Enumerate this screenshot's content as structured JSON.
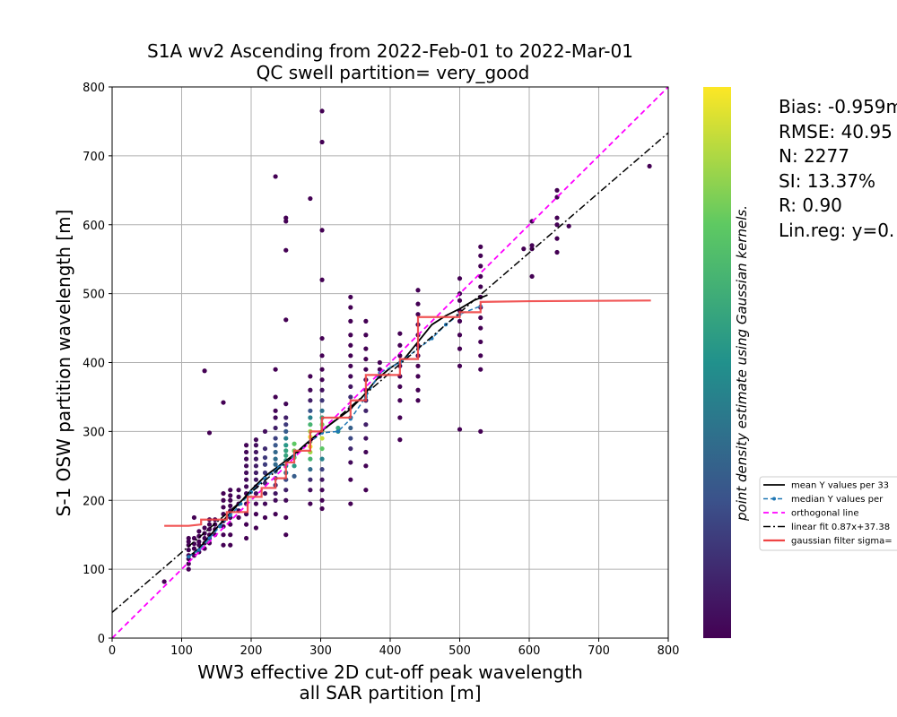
{
  "chart_data": {
    "type": "scatter",
    "title": "S1A wv2 Ascending from 2022-Feb-01 to 2022-Mar-01",
    "subtitle": "QC swell partition= very_good",
    "xlabel_line1": "WW3 effective 2D cut-off peak wavelength",
    "xlabel_line2": "all SAR partition [m]",
    "ylabel": "S-1 OSW partition wavelength [m]",
    "colorbar_label": "point density estimate using Gaussian kernels.",
    "xlim": [
      0,
      800
    ],
    "ylim": [
      0,
      800
    ],
    "xticks": [
      "0",
      "100",
      "200",
      "300",
      "400",
      "500",
      "600",
      "700",
      "800"
    ],
    "yticks": [
      "0",
      "100",
      "200",
      "300",
      "400",
      "500",
      "600",
      "700",
      "800"
    ],
    "grid": true,
    "colormap": "viridis",
    "colors": {
      "mean": "#000000",
      "median": "#1f77b4",
      "orthogonal": "#ff00ff",
      "linear_fit": "#000000",
      "gaussian": "#ef4444"
    },
    "stats": [
      "Bias: -0.959m",
      "RMSE: 40.95",
      "N: 2277",
      "SI: 13.37%",
      "R: 0.90",
      "Lin.reg: y=0."
    ],
    "legend": {
      "position": "right",
      "entries": [
        "mean Y values per 33",
        "median Y values per",
        "orthogonal line",
        "linear fit 0.87x+37.38",
        "gaussian filter sigma="
      ]
    },
    "scatter_columns": [
      {
        "x": 75,
        "ys": [
          82
        ]
      },
      {
        "x": 110,
        "ys": [
          100,
          108,
          115,
          120,
          128,
          135,
          140,
          145
        ]
      },
      {
        "x": 118,
        "ys": [
          120,
          130,
          137,
          145,
          175
        ]
      },
      {
        "x": 125,
        "ys": [
          125,
          135,
          140,
          148,
          155
        ]
      },
      {
        "x": 133,
        "ys": [
          130,
          138,
          145,
          152,
          160,
          388
        ]
      },
      {
        "x": 140,
        "ys": [
          138,
          145,
          150,
          158,
          165,
          172,
          298
        ]
      },
      {
        "x": 148,
        "ys": [
          150,
          158,
          165,
          172
        ]
      },
      {
        "x": 160,
        "ys": [
          135,
          150,
          162,
          170,
          180,
          190,
          200,
          210,
          342
        ]
      },
      {
        "x": 170,
        "ys": [
          135,
          150,
          165,
          175,
          185,
          192,
          200,
          207,
          215
        ]
      },
      {
        "x": 182,
        "ys": [
          175,
          185,
          195,
          205,
          215
        ]
      },
      {
        "x": 193,
        "ys": [
          145,
          165,
          180,
          195,
          210,
          220,
          230,
          240,
          250,
          260,
          270,
          280
        ]
      },
      {
        "x": 207,
        "ys": [
          160,
          180,
          195,
          210,
          220,
          230,
          240,
          250,
          260,
          270,
          280,
          288
        ]
      },
      {
        "x": 220,
        "ys": [
          175,
          195,
          210,
          225,
          240,
          252,
          262,
          275,
          300
        ]
      },
      {
        "x": 235,
        "ys": [
          180,
          200,
          210,
          222,
          232,
          242,
          252,
          260,
          270,
          280,
          290,
          305,
          320,
          330,
          350,
          390,
          670
        ]
      },
      {
        "x": 250,
        "ys": [
          150,
          175,
          200,
          215,
          230,
          240,
          250,
          258,
          265,
          272,
          280,
          290,
          300,
          310,
          320,
          340,
          462,
          563,
          605,
          610
        ]
      },
      {
        "x": 262,
        "ys": [
          235,
          250,
          262,
          272,
          282
        ]
      },
      {
        "x": 285,
        "ys": [
          195,
          215,
          230,
          245,
          260,
          270,
          278,
          285,
          292,
          300,
          310,
          320,
          330,
          345,
          360,
          380,
          638
        ]
      },
      {
        "x": 302,
        "ys": [
          188,
          200,
          215,
          230,
          245,
          260,
          275,
          290,
          300,
          310,
          320,
          330,
          345,
          360,
          375,
          390,
          410,
          435,
          520,
          592,
          720,
          765
        ]
      },
      {
        "x": 325,
        "ys": [
          300,
          305
        ]
      },
      {
        "x": 343,
        "ys": [
          195,
          230,
          255,
          275,
          290,
          305,
          320,
          335,
          350,
          365,
          380,
          395,
          410,
          425,
          440,
          460,
          480,
          495
        ]
      },
      {
        "x": 365,
        "ys": [
          215,
          250,
          270,
          290,
          310,
          330,
          345,
          360,
          375,
          390,
          405,
          420,
          440,
          460
        ]
      },
      {
        "x": 385,
        "ys": [
          380,
          390,
          400
        ]
      },
      {
        "x": 414,
        "ys": [
          288,
          320,
          345,
          365,
          380,
          395,
          410,
          425,
          442
        ]
      },
      {
        "x": 440,
        "ys": [
          345,
          360,
          380,
          395,
          410,
          425,
          440,
          455,
          470,
          485,
          505
        ]
      },
      {
        "x": 500,
        "ys": [
          303,
          395,
          420,
          440,
          460,
          475,
          490,
          500,
          522
        ]
      },
      {
        "x": 530,
        "ys": [
          300,
          390,
          410,
          430,
          450,
          465,
          480,
          495,
          510,
          525,
          540,
          555,
          568
        ]
      },
      {
        "x": 592,
        "ys": [
          565
        ]
      },
      {
        "x": 604,
        "ys": [
          525,
          565,
          570,
          605
        ]
      },
      {
        "x": 640,
        "ys": [
          560,
          580,
          600,
          610,
          640,
          650
        ]
      },
      {
        "x": 657,
        "ys": [
          598
        ]
      },
      {
        "x": 773,
        "ys": [
          685
        ]
      }
    ],
    "series": [
      {
        "name": "mean Y values per 33",
        "x": [
          110,
          125,
          140,
          155,
          170,
          185,
          200,
          220,
          240,
          260,
          280,
          300,
          320,
          340,
          360,
          380,
          400,
          420,
          440,
          460,
          480,
          500,
          520,
          540
        ],
        "y": [
          118,
          130,
          148,
          165,
          182,
          198,
          215,
          235,
          250,
          265,
          283,
          300,
          315,
          330,
          350,
          375,
          392,
          405,
          430,
          455,
          468,
          478,
          490,
          498
        ]
      },
      {
        "name": "median Y values per",
        "x": [
          110,
          125,
          140,
          155,
          170,
          185,
          200,
          220,
          240,
          262,
          285,
          302,
          325,
          343,
          365,
          385,
          414,
          440,
          460,
          480,
          500,
          530
        ],
        "y": [
          118,
          128,
          145,
          162,
          178,
          195,
          212,
          232,
          248,
          265,
          285,
          298,
          300,
          318,
          350,
          385,
          400,
          420,
          435,
          455,
          470,
          482
        ]
      },
      {
        "name": "orthogonal line",
        "x": [
          0,
          800
        ],
        "y": [
          0,
          800
        ]
      },
      {
        "name": "linear fit 0.87x+37.38",
        "x": [
          0,
          800
        ],
        "y": [
          37.38,
          733.38
        ]
      },
      {
        "name": "gaussian filter sigma=",
        "x": [
          75,
          110,
          128,
          128,
          165,
          165,
          195,
          195,
          215,
          215,
          235,
          235,
          250,
          250,
          262,
          262,
          285,
          285,
          302,
          302,
          343,
          343,
          365,
          365,
          414,
          414,
          440,
          440,
          500,
          500,
          530,
          530,
          600,
          775
        ],
        "y": [
          163,
          163,
          165,
          172,
          172,
          183,
          183,
          205,
          205,
          218,
          218,
          232,
          232,
          255,
          255,
          272,
          272,
          300,
          300,
          320,
          320,
          345,
          345,
          382,
          382,
          405,
          405,
          466,
          466,
          473,
          473,
          488,
          489,
          490
        ]
      }
    ]
  }
}
